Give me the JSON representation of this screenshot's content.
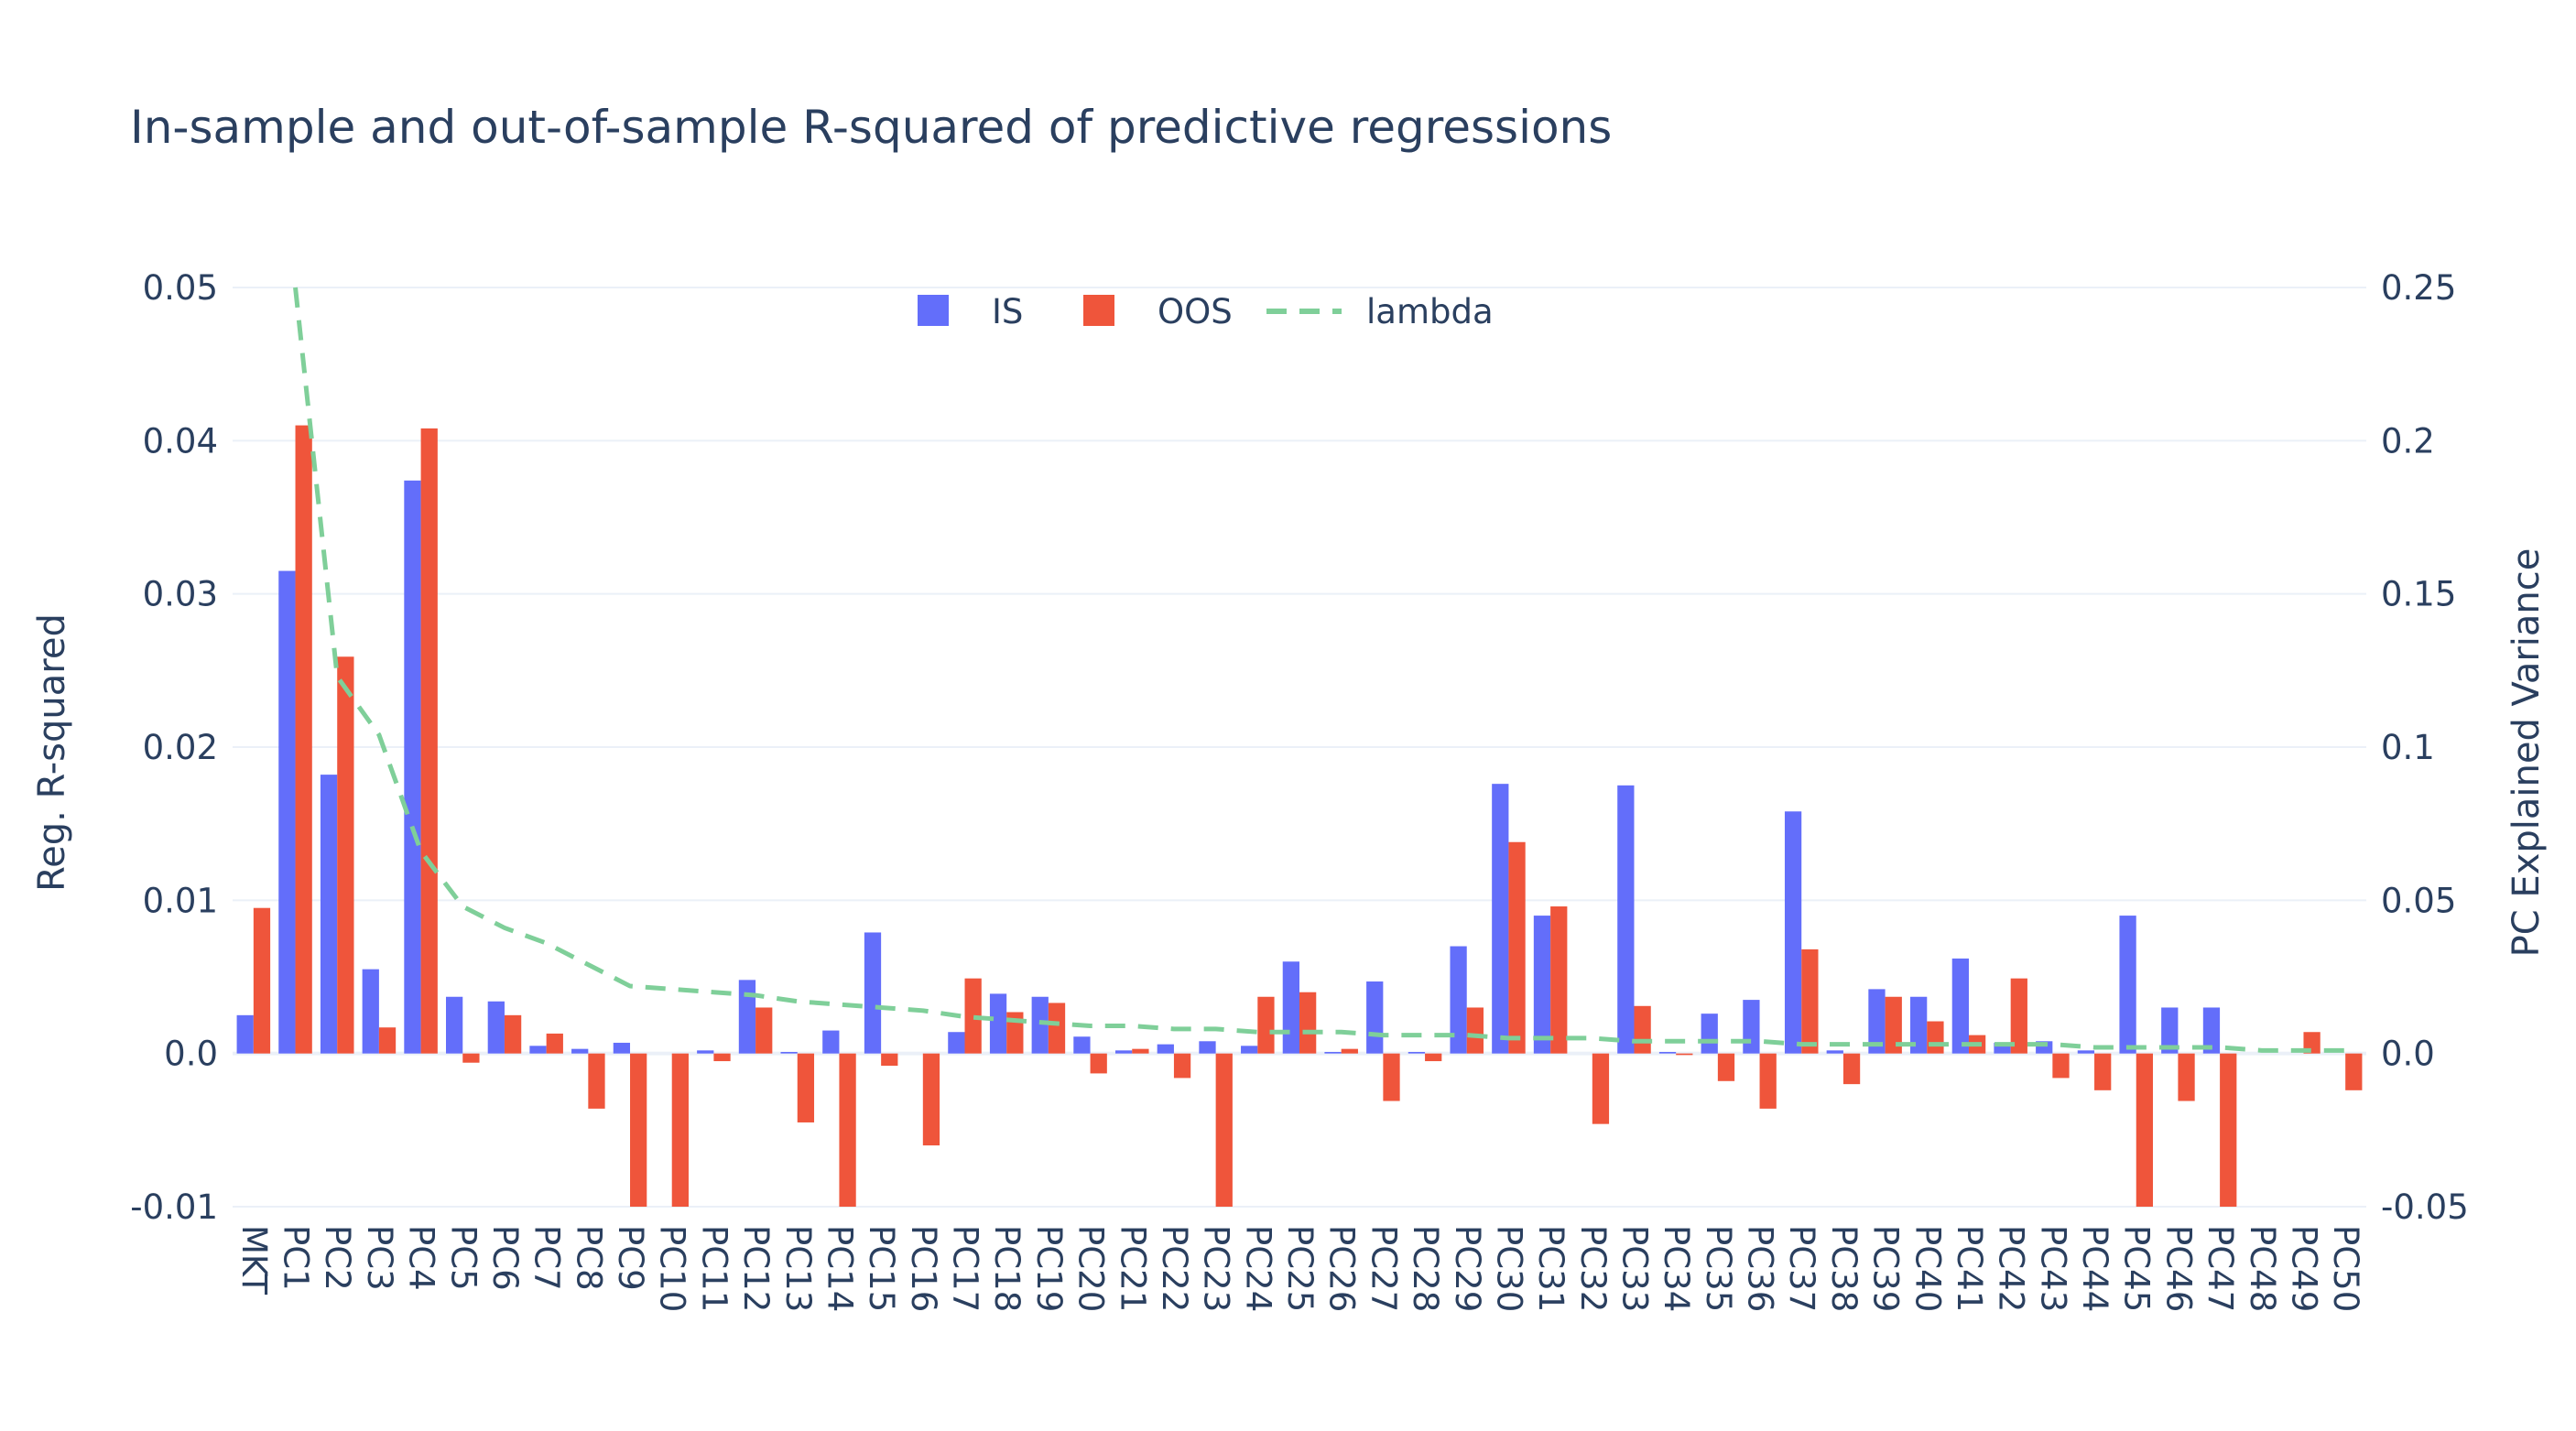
{
  "chart_data": {
    "type": "bar",
    "title": "In-sample and out-of-sample R-squared of predictive regressions",
    "ylabel": "Reg. R-squared",
    "y2label": "PC Explained Variance",
    "ylim": [
      -0.01,
      0.05
    ],
    "y2lim": [
      -0.05,
      0.25
    ],
    "yticks": [
      "-0.01",
      "0.0",
      "0.01",
      "0.02",
      "0.03",
      "0.04",
      "0.05"
    ],
    "y2ticks": [
      "-0.05",
      "0.0",
      "0.05",
      "0.1",
      "0.15",
      "0.2",
      "0.25"
    ],
    "grid": true,
    "legend_position": "top-center",
    "categories": [
      "MKT",
      "PC1",
      "PC2",
      "PC3",
      "PC4",
      "PC5",
      "PC6",
      "PC7",
      "PC8",
      "PC9",
      "PC10",
      "PC11",
      "PC12",
      "PC13",
      "PC14",
      "PC15",
      "PC16",
      "PC17",
      "PC18",
      "PC19",
      "PC20",
      "PC21",
      "PC22",
      "PC23",
      "PC24",
      "PC25",
      "PC26",
      "PC27",
      "PC28",
      "PC29",
      "PC30",
      "PC31",
      "PC32",
      "PC33",
      "PC34",
      "PC35",
      "PC36",
      "PC37",
      "PC38",
      "PC39",
      "PC40",
      "PC41",
      "PC42",
      "PC43",
      "PC44",
      "PC45",
      "PC46",
      "PC47",
      "PC48",
      "PC49",
      "PC50"
    ],
    "series": [
      {
        "name": "IS",
        "color": "#636efa",
        "type": "bar",
        "values": [
          0.0025,
          0.0315,
          0.0182,
          0.0055,
          0.0374,
          0.0037,
          0.0034,
          0.0005,
          0.0003,
          0.0007,
          0.0,
          0.0002,
          0.0048,
          0.0001,
          0.0015,
          0.0079,
          0.0,
          0.0014,
          0.0039,
          0.0037,
          0.0011,
          0.0002,
          0.0006,
          0.0008,
          0.0005,
          0.006,
          0.0001,
          0.0047,
          0.0001,
          0.007,
          0.0176,
          0.009,
          0.0,
          0.0175,
          0.0001,
          0.0026,
          0.0035,
          0.0158,
          0.0002,
          0.0042,
          0.0037,
          0.0062,
          0.0007,
          0.0008,
          0.0002,
          0.009,
          0.003,
          0.003,
          0.0,
          0.0,
          0.0
        ]
      },
      {
        "name": "OOS",
        "color": "#ef553b",
        "type": "bar",
        "values": [
          0.0095,
          0.041,
          0.0259,
          0.0017,
          0.0408,
          -0.0006,
          0.0025,
          0.0013,
          -0.0036,
          -0.01,
          -0.01,
          -0.0005,
          0.003,
          -0.0045,
          -0.01,
          -0.0008,
          -0.006,
          0.0049,
          0.0027,
          0.0033,
          -0.0013,
          0.0003,
          -0.0016,
          -0.01,
          0.0037,
          0.004,
          0.0003,
          -0.0031,
          -0.0005,
          0.003,
          0.0138,
          0.0096,
          -0.0046,
          0.0031,
          -0.0001,
          -0.0018,
          -0.0036,
          0.0068,
          -0.002,
          0.0037,
          0.0021,
          0.0012,
          0.0049,
          -0.0016,
          -0.0024,
          -0.01,
          -0.0031,
          -0.01,
          0.0,
          0.0014,
          -0.0024
        ]
      },
      {
        "name": "lambda",
        "color": "#7fcf99",
        "type": "line",
        "dash": "dash",
        "axis": "right",
        "x": [
          "PC1",
          "PC2",
          "PC3",
          "PC4",
          "PC5",
          "PC6",
          "PC7",
          "PC8",
          "PC9",
          "PC10",
          "PC11",
          "PC12",
          "PC13",
          "PC14",
          "PC15",
          "PC16",
          "PC17",
          "PC18",
          "PC19",
          "PC20",
          "PC21",
          "PC22",
          "PC23",
          "PC24",
          "PC25",
          "PC26",
          "PC27",
          "PC28",
          "PC29",
          "PC30",
          "PC31",
          "PC32",
          "PC33",
          "PC34",
          "PC35",
          "PC36",
          "PC37",
          "PC38",
          "PC39",
          "PC40",
          "PC41",
          "PC42",
          "PC43",
          "PC44",
          "PC45",
          "PC46",
          "PC47",
          "PC48",
          "PC49",
          "PC50"
        ],
        "values": [
          0.25,
          0.123,
          0.104,
          0.066,
          0.048,
          0.041,
          0.036,
          0.029,
          0.022,
          0.021,
          0.02,
          0.019,
          0.017,
          0.016,
          0.015,
          0.014,
          0.012,
          0.011,
          0.01,
          0.009,
          0.009,
          0.008,
          0.008,
          0.007,
          0.007,
          0.007,
          0.006,
          0.006,
          0.006,
          0.005,
          0.005,
          0.005,
          0.004,
          0.004,
          0.004,
          0.004,
          0.003,
          0.003,
          0.003,
          0.003,
          0.003,
          0.003,
          0.003,
          0.002,
          0.002,
          0.002,
          0.002,
          0.001,
          0.001,
          0.001
        ]
      }
    ]
  }
}
